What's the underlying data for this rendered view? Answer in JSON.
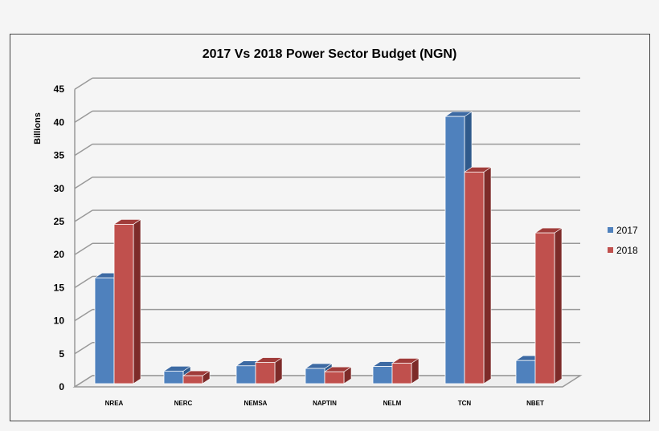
{
  "chart_data": {
    "type": "bar",
    "title": "2017 Vs 2018 Power Sector Budget (NGN)",
    "ylabel": "Billions",
    "xlabel": "",
    "ylim": [
      0,
      45
    ],
    "yticks": [
      "0",
      "5",
      "10",
      "15",
      "20",
      "25",
      "30",
      "35",
      "40",
      "45"
    ],
    "categories": [
      "NREA",
      "NERC",
      "NEMSA",
      "NAPTIN",
      "NELM",
      "TCN",
      "NBET"
    ],
    "series": [
      {
        "name": "2017",
        "color": "#4f81bd",
        "values": [
          16,
          1.9,
          2.7,
          2.3,
          2.6,
          40.4,
          3.5
        ]
      },
      {
        "name": "2018",
        "color": "#c0504d",
        "values": [
          24.1,
          1.2,
          3.2,
          1.8,
          3.1,
          32,
          22.8
        ]
      }
    ],
    "grid": true,
    "legend": "right",
    "style": "3d-clustered-column"
  }
}
